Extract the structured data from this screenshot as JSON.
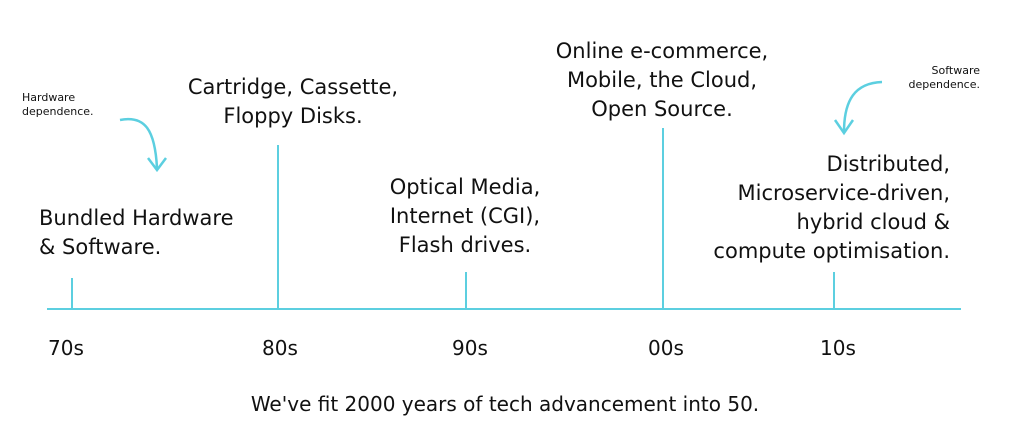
{
  "colors": {
    "accent": "#5ccfe0",
    "text": "#111111"
  },
  "annotations": {
    "hardware": "Hardware\ndependence.",
    "software": "Software\ndependence."
  },
  "eras": [
    {
      "decade": "70s",
      "text": "Bundled Hardware\n& Software."
    },
    {
      "decade": "80s",
      "text": "Cartridge, Cassette,\nFloppy Disks."
    },
    {
      "decade": "90s",
      "text": "Optical Media,\nInternet (CGI),\nFlash drives."
    },
    {
      "decade": "00s",
      "text": "Online e-commerce,\nMobile, the Cloud,\nOpen Source."
    },
    {
      "decade": "10s",
      "text": "Distributed,\nMicroservice-driven,\nhybrid cloud &\ncompute optimisation."
    }
  ],
  "footer": "We've fit 2000 years of tech advancement into 50."
}
